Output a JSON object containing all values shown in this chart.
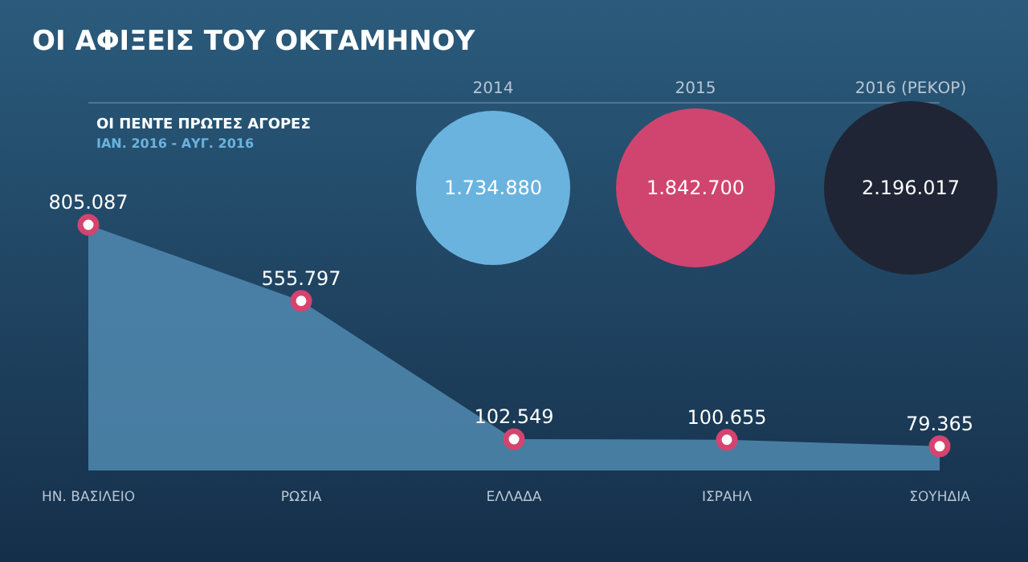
{
  "chart_data": [
    {
      "type": "area",
      "title": "ΟΙ ΑΦΙΞΕΙΣ ΤΟΥ ΟΚΤΑΜΗΝΟΥ",
      "subtitle": "ΟΙ ΠΕΝΤΕ ΠΡΩΤΕΣ ΑΓΟΡΕΣ",
      "annotations": [
        "ΙΑΝ. 2016 - ΑΥΓ. 2016"
      ],
      "categories": [
        "ΗΝ. ΒΑΣΙΛΕΙΟ",
        "ΡΩΣΙΑ",
        "ΕΛΛΑΔΑ",
        "ΙΣΡΑΗΛ",
        "ΣΟΥΗΔΙΑ"
      ],
      "values": [
        805087,
        555797,
        102549,
        100655,
        79365
      ],
      "value_labels": [
        "805.087",
        "555.797",
        "102.549",
        "100.655",
        "79.365"
      ],
      "color": "#5189b0",
      "marker": "circle"
    },
    {
      "type": "other",
      "categories": [
        "2014",
        "2015",
        "2016 (ΡΕΚΟΡ)"
      ],
      "values": [
        1734880,
        1842700,
        2196017
      ],
      "value_labels": [
        "1.734.880",
        "1.842.700",
        "2.196.017"
      ],
      "colors": [
        "#6ab3de",
        "#d0456f",
        "#1f2535"
      ]
    }
  ]
}
